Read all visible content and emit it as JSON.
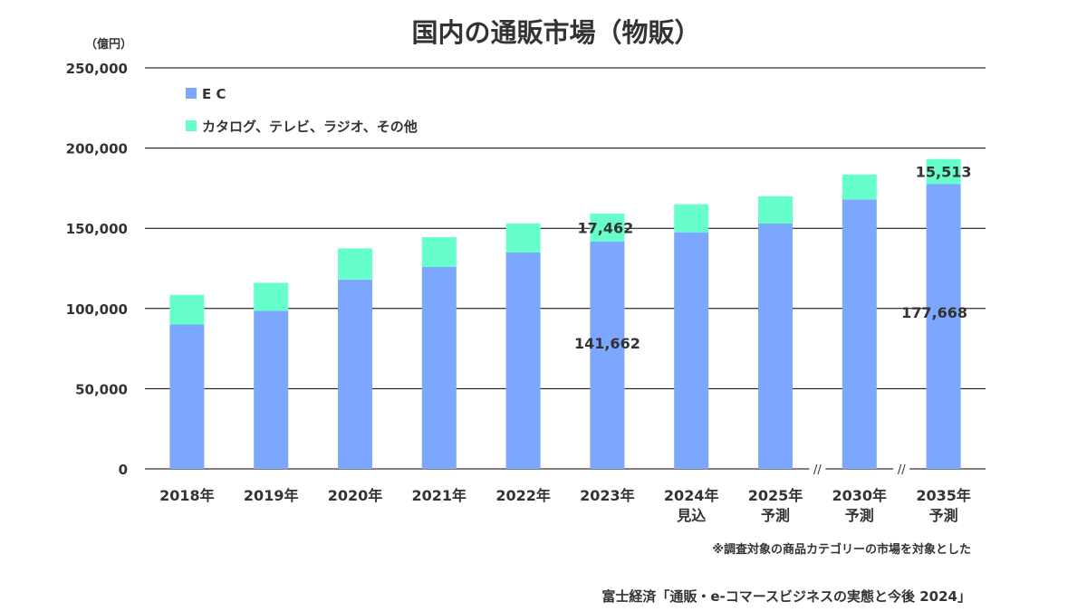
{
  "chart_data": {
    "type": "bar",
    "stacked": true,
    "title": "国内の通販市場（物販）",
    "unit_label": "（億円）",
    "categories": [
      "2018年",
      "2019年",
      "2020年",
      "2021年",
      "2022年",
      "2023年",
      "2024年\n見込",
      "2025年\n予測",
      "2030年\n予測",
      "2035年\n予測"
    ],
    "series": [
      {
        "name": "E C",
        "color": "#7ba7ff",
        "values": [
          90000,
          98500,
          118000,
          126000,
          135000,
          141662,
          147500,
          153000,
          168000,
          177668
        ]
      },
      {
        "name": "カタログ、テレビ、ラジオ、その他",
        "color": "#66ffcc",
        "values": [
          18500,
          17500,
          19500,
          18500,
          18000,
          17462,
          17500,
          17000,
          15500,
          15513
        ]
      }
    ],
    "ylim": [
      0,
      250000
    ],
    "yticks": [
      "0",
      "50,000",
      "100,000",
      "150,000",
      "200,000",
      "250,000"
    ],
    "ytick_values": [
      0,
      50000,
      100000,
      150000,
      200000,
      250000
    ],
    "grid": true,
    "legend_position": "top-left",
    "axis_breaks_after": [
      "2025年\n予測",
      "2030年\n予測"
    ],
    "axis_break_symbol": "//",
    "annotations": [
      {
        "category": "2023年",
        "series": "カタログ、テレビ、ラジオ、その他",
        "text": "17,462"
      },
      {
        "category": "2023年",
        "series": "E C",
        "text": "141,662"
      },
      {
        "category": "2035年\n予測",
        "series": "カタログ、テレビ、ラジオ、その他",
        "text": "15,513"
      },
      {
        "category": "2035年\n予測",
        "series": "E C",
        "text": "177,668"
      }
    ],
    "note": "※調査対象の商品カテゴリーの市場を対象とした",
    "source": "富士経済「通販・e-コマースビジネスの実態と今後 2024」"
  }
}
